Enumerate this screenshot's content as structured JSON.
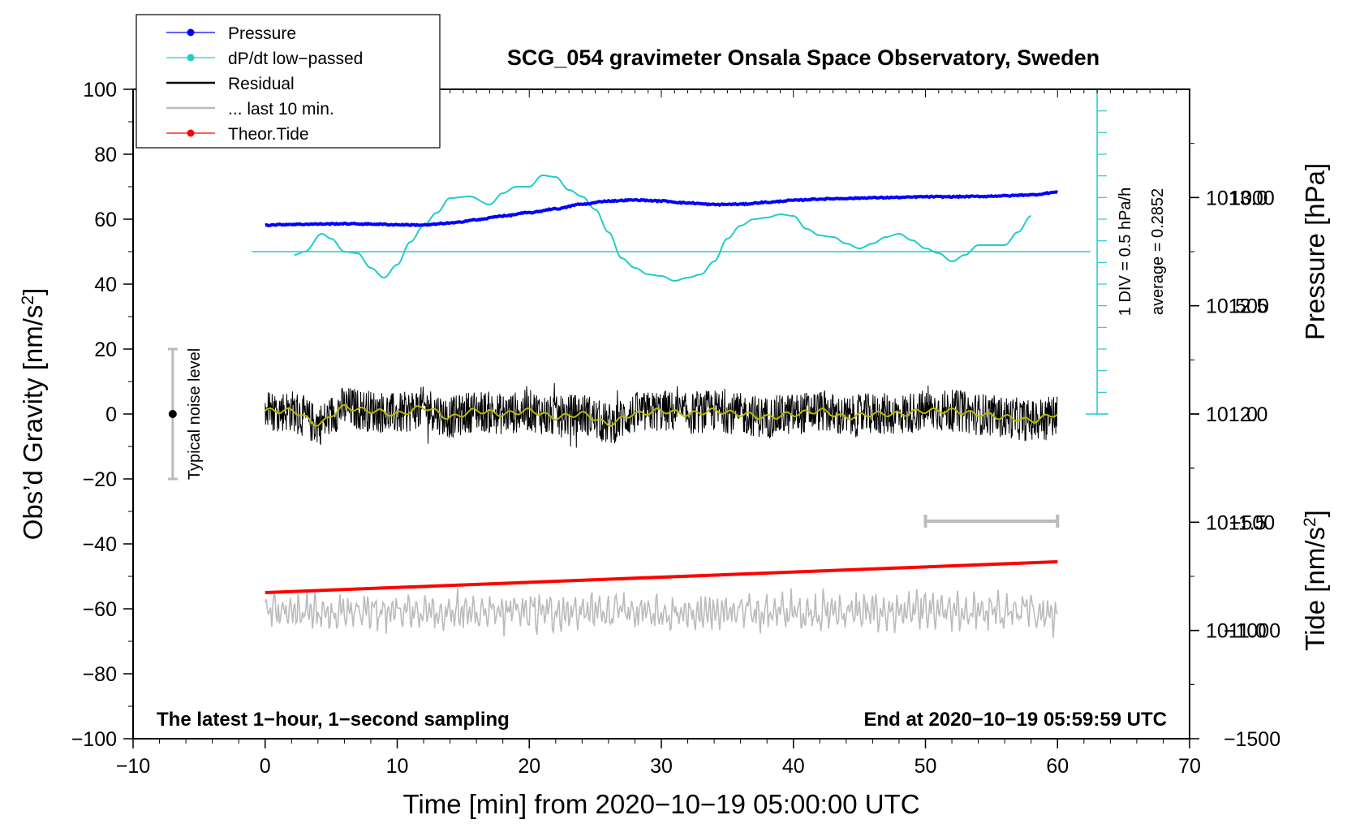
{
  "chart_data": {
    "type": "line",
    "title": "SCG_054 gravimeter Onsala Space Observatory, Sweden",
    "xlabel": "Time [min] from 2020−10−19 05:00:00 UTC",
    "ylabel": "Obs’d Gravity [nm/s",
    "ylabel_sup": "2",
    "ylabel_close": "]",
    "y2label": "Pressure [hPa]",
    "y3label": "Tide [nm/s",
    "y3label_sup": "2",
    "y3label_close": "]",
    "xlim": [
      -10,
      70
    ],
    "ylim": [
      -100,
      100
    ],
    "x_ticks": [
      {
        "v": -10,
        "label": "−10"
      },
      {
        "v": 0,
        "label": "0"
      },
      {
        "v": 10,
        "label": "10"
      },
      {
        "v": 20,
        "label": "20"
      },
      {
        "v": 30,
        "label": "30"
      },
      {
        "v": 40,
        "label": "40"
      },
      {
        "v": 50,
        "label": "50"
      },
      {
        "v": 60,
        "label": "60"
      },
      {
        "v": 70,
        "label": "70"
      }
    ],
    "y_ticks": [
      {
        "v": 100,
        "label": "100"
      },
      {
        "v": 80,
        "label": "80"
      },
      {
        "v": 60,
        "label": "60"
      },
      {
        "v": 40,
        "label": "40"
      },
      {
        "v": 20,
        "label": "20"
      },
      {
        "v": 0,
        "label": "0"
      },
      {
        "v": -20,
        "label": "−20"
      },
      {
        "v": -40,
        "label": "−40"
      },
      {
        "v": -60,
        "label": "−60"
      },
      {
        "v": -80,
        "label": "−80"
      },
      {
        "v": -100,
        "label": "−100"
      }
    ],
    "pressure_axis": {
      "range": [
        1010.5,
        1013.5
      ],
      "ticks": [
        {
          "v": 1013.0,
          "label": "1013.0"
        },
        {
          "v": 1012.5,
          "label": "1012.5"
        },
        {
          "v": 1012.0,
          "label": "1012.0"
        },
        {
          "v": 1011.5,
          "label": "1011.5"
        },
        {
          "v": 1011.0,
          "label": "1011.0"
        }
      ]
    },
    "tide_axis": {
      "range": [
        -1500,
        1500
      ],
      "ticks": [
        {
          "v": 1000,
          "label": "1000"
        },
        {
          "v": 500,
          "label": "500"
        },
        {
          "v": 0,
          "label": "0"
        },
        {
          "v": -500,
          "label": "−500"
        },
        {
          "v": -1000,
          "label": "−1000"
        },
        {
          "v": -1500,
          "label": "−1500"
        }
      ]
    },
    "legend": [
      {
        "label": "Pressure",
        "color": "#0000ff",
        "marker": true
      },
      {
        "label": "dP/dt low−passed",
        "color": "#22cccc",
        "marker": true
      },
      {
        "label": "Residual",
        "color": "#000000",
        "marker": false
      },
      {
        "label": "... last 10 min.",
        "color": "#bbbbbb",
        "marker": false
      },
      {
        "label": "Theor.Tide",
        "color": "#ff0000",
        "marker": true
      }
    ],
    "series": [
      {
        "name": "Pressure",
        "color": "#0000ff",
        "x": [
          0,
          2,
          4,
          6,
          8,
          10,
          12,
          14,
          16,
          18,
          20,
          22,
          24,
          26,
          28,
          30,
          32,
          34,
          36,
          38,
          40,
          42,
          44,
          46,
          48,
          50,
          52,
          54,
          56,
          58,
          60
        ],
        "y": [
          58.2,
          58.4,
          58.5,
          58.6,
          58.5,
          58.3,
          58.2,
          58.8,
          59.8,
          61.0,
          62.0,
          63.2,
          64.6,
          65.6,
          65.9,
          65.6,
          65.0,
          64.5,
          64.6,
          65.2,
          65.8,
          66.2,
          66.4,
          66.6,
          66.7,
          66.9,
          66.9,
          67.0,
          67.2,
          67.5,
          68.3
        ]
      },
      {
        "name": "dP/dt low−passed",
        "color": "#22cccc",
        "x": [
          2.2,
          3,
          4.3,
          5,
          6,
          7,
          8,
          9,
          10,
          11,
          12,
          13,
          14,
          15.5,
          17,
          18,
          19,
          20,
          21,
          22,
          23,
          24,
          25,
          26,
          27,
          28,
          29,
          30,
          31,
          32,
          33,
          34,
          35,
          36,
          37,
          38,
          39,
          40,
          41,
          42,
          43,
          44,
          45,
          46,
          47,
          48,
          49,
          50,
          51,
          52,
          53,
          54,
          55,
          56,
          57,
          58
        ],
        "y": [
          49,
          50,
          55.5,
          54,
          50,
          49.5,
          45,
          42,
          46,
          53,
          58,
          62,
          66.5,
          67,
          64.5,
          68,
          70,
          70,
          73.5,
          73,
          69,
          67,
          63,
          56,
          48,
          45,
          43,
          42.5,
          41,
          42,
          43,
          47,
          54,
          58,
          60,
          60.5,
          61.5,
          61,
          57,
          55,
          54.5,
          52.5,
          51,
          52.5,
          54.5,
          55.5,
          53.5,
          51,
          49.5,
          47,
          49,
          52,
          52,
          52,
          56,
          61
        ]
      },
      {
        "name": "Residual",
        "color": "#000000",
        "x_range": [
          0,
          60
        ],
        "y_mean": 0,
        "y_range": [
          -14,
          12
        ]
      },
      {
        "name": "Residual (smoothed)",
        "color": "#b8b800",
        "x": [
          0,
          2,
          4,
          6,
          8,
          10,
          12,
          14,
          16,
          18,
          20,
          22,
          24,
          26,
          28,
          30,
          32,
          34,
          36,
          38,
          40,
          42,
          44,
          46,
          48,
          50,
          52,
          54,
          56,
          58,
          60
        ],
        "y": [
          1,
          1,
          -3,
          2,
          1,
          0,
          2,
          -1,
          1,
          0,
          1,
          -1,
          0,
          -3,
          0,
          1,
          0,
          1,
          0,
          -1,
          0,
          1,
          -1,
          0,
          0,
          1,
          1,
          0,
          -1,
          -2,
          0
        ]
      },
      {
        "name": "... last 10 min.",
        "color": "#bbbbbb",
        "x_range": [
          0,
          60
        ],
        "y_mean": -61,
        "y_range": [
          -74,
          -53
        ]
      },
      {
        "name": "Theor.Tide",
        "color": "#ff0000",
        "x": [
          0,
          60
        ],
        "y": [
          -55,
          -45.5
        ]
      }
    ],
    "pressure_avg_line": 50,
    "scale_bar": {
      "x": 63,
      "y_from": 0,
      "y_to": 100,
      "label1": "1 DIV = 0.5 hPa/h",
      "label2": "average = 0.2852"
    },
    "noise_bar": {
      "x": -7,
      "y_from": -20,
      "y_to": 20,
      "label": "Typical noise level"
    },
    "window_bar": {
      "x_from": 50,
      "x_to": 60,
      "y": -33
    },
    "annotations": {
      "bottom_left": "The latest 1−hour, 1−second sampling",
      "bottom_right": "End at 2020−10−19 05:59:59 UTC"
    }
  }
}
